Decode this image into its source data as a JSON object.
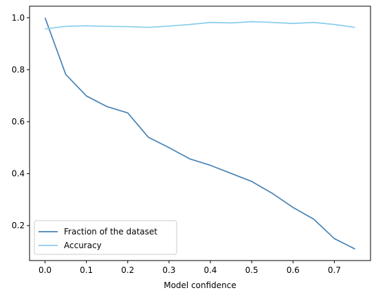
{
  "chart_data": {
    "type": "line",
    "title": "",
    "xlabel": "Model confidence",
    "ylabel": "",
    "xlim": [
      -0.0375,
      0.7875
    ],
    "ylim": [
      0.0655,
      1.0445
    ],
    "xticks": [
      0.0,
      0.1,
      0.2,
      0.3,
      0.4,
      0.5,
      0.6,
      0.7
    ],
    "xtick_labels": [
      "0.0",
      "0.1",
      "0.2",
      "0.3",
      "0.4",
      "0.5",
      "0.6",
      "0.7"
    ],
    "yticks": [
      0.2,
      0.4,
      0.6,
      0.8,
      1.0
    ],
    "ytick_labels": [
      "0.2",
      "0.4",
      "0.6",
      "0.8",
      "1.0"
    ],
    "grid": false,
    "legend_position": "lower-left",
    "x": [
      0.0,
      0.05,
      0.1,
      0.15,
      0.2,
      0.25,
      0.3,
      0.35,
      0.4,
      0.45,
      0.5,
      0.55,
      0.6,
      0.65,
      0.7,
      0.75
    ],
    "series": [
      {
        "name": "Fraction of the dataset",
        "color": "#4682b4",
        "values": [
          1.0,
          0.782,
          0.699,
          0.658,
          0.634,
          0.54,
          0.5,
          0.457,
          0.432,
          0.401,
          0.37,
          0.324,
          0.27,
          0.225,
          0.15,
          0.11
        ]
      },
      {
        "name": "Accuracy",
        "color": "#87ceeb",
        "values": [
          0.957,
          0.967,
          0.969,
          0.967,
          0.966,
          0.963,
          0.968,
          0.974,
          0.982,
          0.98,
          0.985,
          0.982,
          0.978,
          0.982,
          0.974,
          0.963
        ]
      }
    ]
  }
}
